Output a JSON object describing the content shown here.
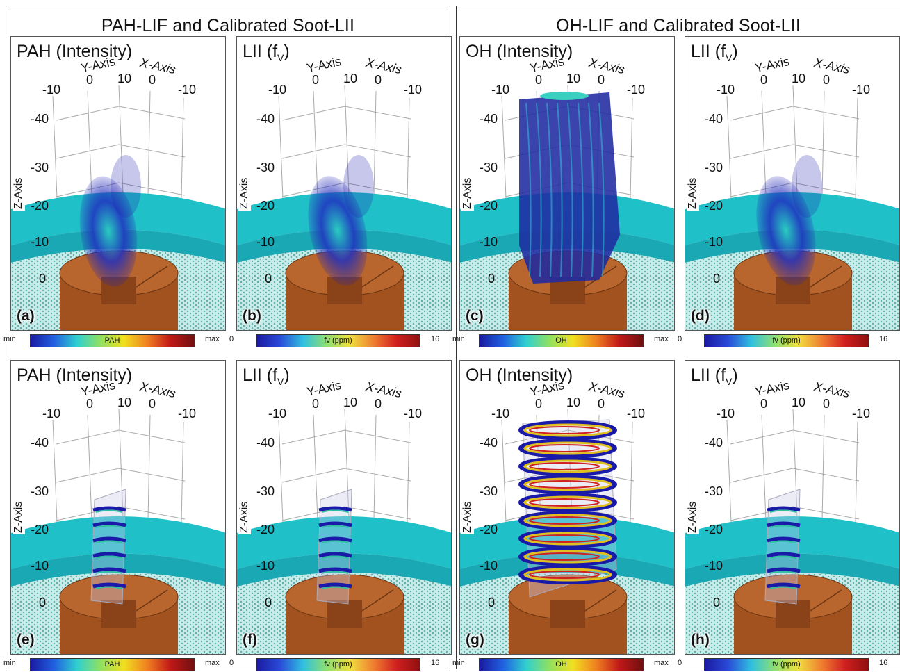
{
  "sections": [
    {
      "title": "PAH-LIF and Calibrated Soot-LII"
    },
    {
      "title": "OH-LIF and Calibrated Soot-LII"
    }
  ],
  "axis_labels": {
    "y": "Y-Axis",
    "x": "X-Axis",
    "z": "Z-Axis"
  },
  "xy_ticks": [
    "-10",
    "0",
    "10",
    "0",
    "-10"
  ],
  "z_ticks": [
    "-40",
    "-30",
    "-20",
    "-10",
    "0"
  ],
  "colors": {
    "blue": "#1a1aa8",
    "cyan": "#20c0c8",
    "teal": "#4fd2cc",
    "burner": "#a2521f",
    "burner_top": "#b8652e",
    "mesh": "#5fb0aa"
  },
  "panels": [
    {
      "letter": "(a)",
      "title_main": "PAH (Intensity)",
      "title_sub": "",
      "cbar": {
        "min": "min",
        "label": "PAH",
        "max": "max"
      }
    },
    {
      "letter": "(b)",
      "title_main": "LII (f",
      "title_sub": "V",
      "title_end": ")",
      "cbar": {
        "min": "0",
        "label": "fv (ppm)",
        "max": "16"
      }
    },
    {
      "letter": "(c)",
      "title_main": "OH (Intensity)",
      "title_sub": "",
      "cbar": {
        "min": "min",
        "label": "OH",
        "max": "max"
      }
    },
    {
      "letter": "(d)",
      "title_main": "LII (f",
      "title_sub": "V",
      "title_end": ")",
      "cbar": {
        "min": "0",
        "label": "fv (ppm)",
        "max": "16"
      }
    },
    {
      "letter": "(e)",
      "title_main": "PAH (Intensity)",
      "title_sub": "",
      "cbar": {
        "min": "min",
        "label": "PAH",
        "max": "max"
      }
    },
    {
      "letter": "(f)",
      "title_main": "LII (f",
      "title_sub": "V",
      "title_end": ")",
      "cbar": {
        "min": "0",
        "label": "fv (ppm)",
        "max": "16"
      }
    },
    {
      "letter": "(g)",
      "title_main": "OH (Intensity)",
      "title_sub": "",
      "cbar": {
        "min": "min",
        "label": "OH",
        "max": "max"
      }
    },
    {
      "letter": "(h)",
      "title_main": "LII (f",
      "title_sub": "V",
      "title_end": ")",
      "cbar": {
        "min": "0",
        "label": "fv (ppm)",
        "max": "16"
      }
    }
  ]
}
